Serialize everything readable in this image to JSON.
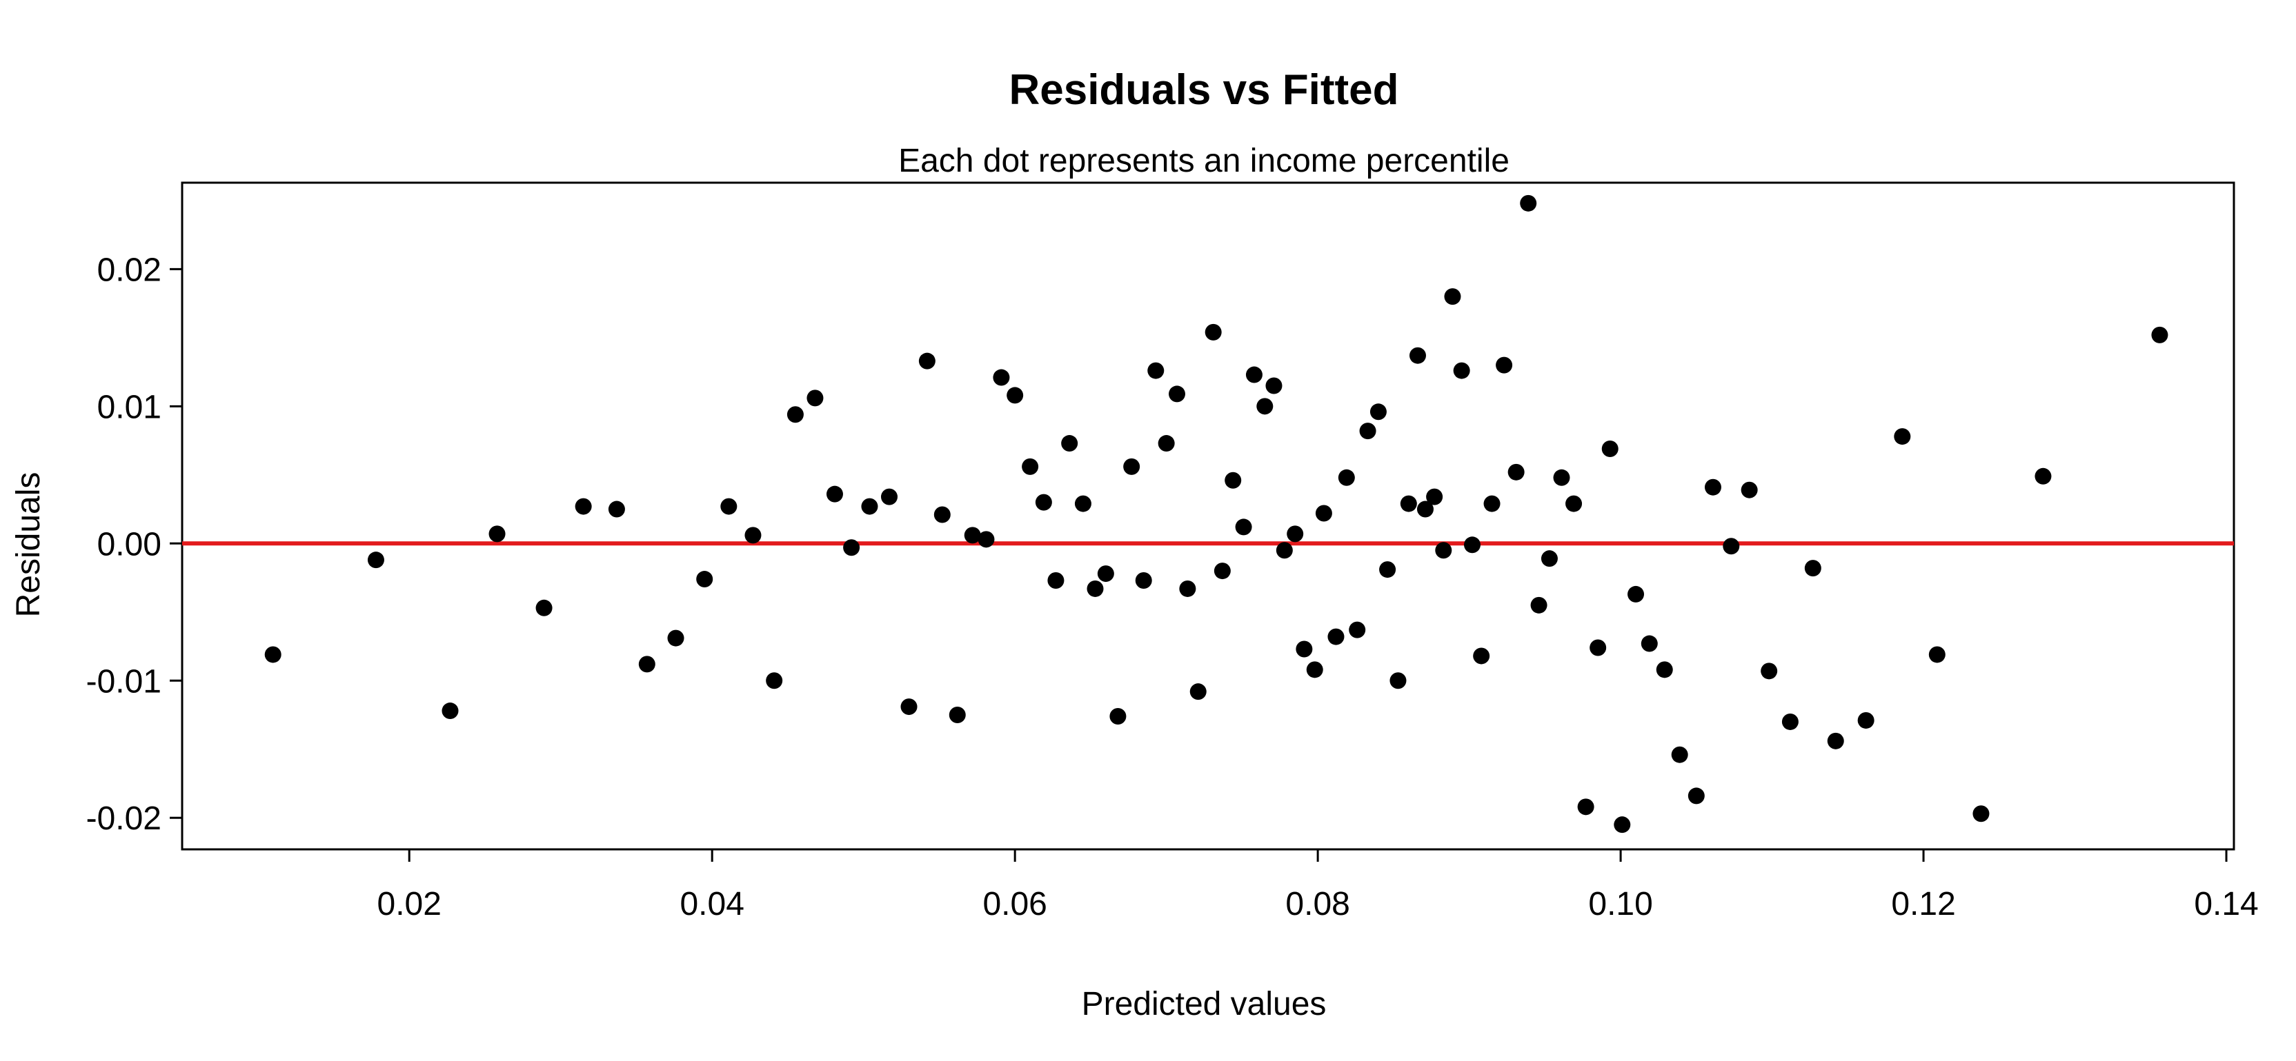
{
  "chart_data": {
    "type": "scatter",
    "title": "Residuals vs Fitted",
    "subtitle": "Each dot represents an income percentile",
    "xlabel": "Predicted values",
    "ylabel": "Residuals",
    "xlim": [
      0.005,
      0.1405
    ],
    "ylim": [
      -0.0223,
      0.0263
    ],
    "x_ticks": [
      0.02,
      0.04,
      0.06,
      0.08,
      0.1,
      0.12,
      0.14
    ],
    "x_tick_labels": [
      "0.02",
      "0.04",
      "0.06",
      "0.08",
      "0.10",
      "0.12",
      "0.14"
    ],
    "y_ticks": [
      -0.02,
      -0.01,
      0.0,
      0.01,
      0.02
    ],
    "y_tick_labels": [
      "-0.02",
      "-0.01",
      "0.00",
      "0.01",
      "0.02"
    ],
    "reference_line": {
      "y": 0,
      "color": "#e31a1c"
    },
    "point_color": "#000000",
    "grid": false,
    "points": [
      {
        "x": 0.011,
        "y": -0.0081
      },
      {
        "x": 0.0178,
        "y": -0.0012
      },
      {
        "x": 0.0227,
        "y": -0.0122
      },
      {
        "x": 0.0258,
        "y": 0.0007
      },
      {
        "x": 0.0289,
        "y": -0.0047
      },
      {
        "x": 0.0315,
        "y": 0.0027
      },
      {
        "x": 0.0337,
        "y": 0.0025
      },
      {
        "x": 0.0357,
        "y": -0.0088
      },
      {
        "x": 0.0376,
        "y": -0.0069
      },
      {
        "x": 0.0395,
        "y": -0.0026
      },
      {
        "x": 0.0411,
        "y": 0.0027
      },
      {
        "x": 0.0427,
        "y": 0.0006
      },
      {
        "x": 0.0441,
        "y": -0.01
      },
      {
        "x": 0.0455,
        "y": 0.0094
      },
      {
        "x": 0.0468,
        "y": 0.0106
      },
      {
        "x": 0.0481,
        "y": 0.0036
      },
      {
        "x": 0.0492,
        "y": -0.0003
      },
      {
        "x": 0.0504,
        "y": 0.0027
      },
      {
        "x": 0.0517,
        "y": 0.0034
      },
      {
        "x": 0.053,
        "y": -0.0119
      },
      {
        "x": 0.0542,
        "y": 0.0133
      },
      {
        "x": 0.0552,
        "y": 0.0021
      },
      {
        "x": 0.0562,
        "y": -0.0125
      },
      {
        "x": 0.0572,
        "y": 0.0006
      },
      {
        "x": 0.0581,
        "y": 0.0003
      },
      {
        "x": 0.0591,
        "y": 0.0121
      },
      {
        "x": 0.06,
        "y": 0.0108
      },
      {
        "x": 0.061,
        "y": 0.0056
      },
      {
        "x": 0.0619,
        "y": 0.003
      },
      {
        "x": 0.0627,
        "y": -0.0027
      },
      {
        "x": 0.0636,
        "y": 0.0073
      },
      {
        "x": 0.0645,
        "y": 0.0029
      },
      {
        "x": 0.0653,
        "y": -0.0033
      },
      {
        "x": 0.066,
        "y": -0.0022
      },
      {
        "x": 0.0668,
        "y": -0.0126
      },
      {
        "x": 0.0677,
        "y": 0.0056
      },
      {
        "x": 0.0685,
        "y": -0.0027
      },
      {
        "x": 0.0693,
        "y": 0.0126
      },
      {
        "x": 0.07,
        "y": 0.0073
      },
      {
        "x": 0.0707,
        "y": 0.0109
      },
      {
        "x": 0.0714,
        "y": -0.0033
      },
      {
        "x": 0.0721,
        "y": -0.0108
      },
      {
        "x": 0.0731,
        "y": 0.0154
      },
      {
        "x": 0.0737,
        "y": -0.002
      },
      {
        "x": 0.0744,
        "y": 0.0046
      },
      {
        "x": 0.0751,
        "y": 0.0012
      },
      {
        "x": 0.0758,
        "y": 0.0123
      },
      {
        "x": 0.0765,
        "y": 0.01
      },
      {
        "x": 0.0771,
        "y": 0.0115
      },
      {
        "x": 0.0778,
        "y": -0.0005
      },
      {
        "x": 0.0785,
        "y": 0.0007
      },
      {
        "x": 0.0791,
        "y": -0.0077
      },
      {
        "x": 0.0798,
        "y": -0.0092
      },
      {
        "x": 0.0804,
        "y": 0.0022
      },
      {
        "x": 0.0812,
        "y": -0.0068
      },
      {
        "x": 0.0819,
        "y": 0.0048
      },
      {
        "x": 0.0826,
        "y": -0.0063
      },
      {
        "x": 0.0833,
        "y": 0.0082
      },
      {
        "x": 0.084,
        "y": 0.0096
      },
      {
        "x": 0.0846,
        "y": -0.0019
      },
      {
        "x": 0.0853,
        "y": -0.01
      },
      {
        "x": 0.086,
        "y": 0.0029
      },
      {
        "x": 0.0866,
        "y": 0.0137
      },
      {
        "x": 0.0871,
        "y": 0.0025
      },
      {
        "x": 0.0877,
        "y": 0.0034
      },
      {
        "x": 0.0883,
        "y": -0.0005
      },
      {
        "x": 0.0889,
        "y": 0.018
      },
      {
        "x": 0.0895,
        "y": 0.0126
      },
      {
        "x": 0.0902,
        "y": -0.0001
      },
      {
        "x": 0.0908,
        "y": -0.0082
      },
      {
        "x": 0.0915,
        "y": 0.0029
      },
      {
        "x": 0.0923,
        "y": 0.013
      },
      {
        "x": 0.0931,
        "y": 0.0052
      },
      {
        "x": 0.0939,
        "y": 0.0248
      },
      {
        "x": 0.0946,
        "y": -0.0045
      },
      {
        "x": 0.0953,
        "y": -0.0011
      },
      {
        "x": 0.0961,
        "y": 0.0048
      },
      {
        "x": 0.0969,
        "y": 0.0029
      },
      {
        "x": 0.0977,
        "y": -0.0192
      },
      {
        "x": 0.0985,
        "y": -0.0076
      },
      {
        "x": 0.0993,
        "y": 0.0069
      },
      {
        "x": 0.1001,
        "y": -0.0205
      },
      {
        "x": 0.101,
        "y": -0.0037
      },
      {
        "x": 0.1019,
        "y": -0.0073
      },
      {
        "x": 0.1029,
        "y": -0.0092
      },
      {
        "x": 0.1039,
        "y": -0.0154
      },
      {
        "x": 0.105,
        "y": -0.0184
      },
      {
        "x": 0.1061,
        "y": 0.0041
      },
      {
        "x": 0.1073,
        "y": -0.0002
      },
      {
        "x": 0.1085,
        "y": 0.0039
      },
      {
        "x": 0.1098,
        "y": -0.0093
      },
      {
        "x": 0.1112,
        "y": -0.013
      },
      {
        "x": 0.1127,
        "y": -0.0018
      },
      {
        "x": 0.1142,
        "y": -0.0144
      },
      {
        "x": 0.1162,
        "y": -0.0129
      },
      {
        "x": 0.1186,
        "y": 0.0078
      },
      {
        "x": 0.1209,
        "y": -0.0081
      },
      {
        "x": 0.1238,
        "y": -0.0197
      },
      {
        "x": 0.1279,
        "y": 0.0049
      },
      {
        "x": 0.1356,
        "y": 0.0152
      }
    ]
  }
}
